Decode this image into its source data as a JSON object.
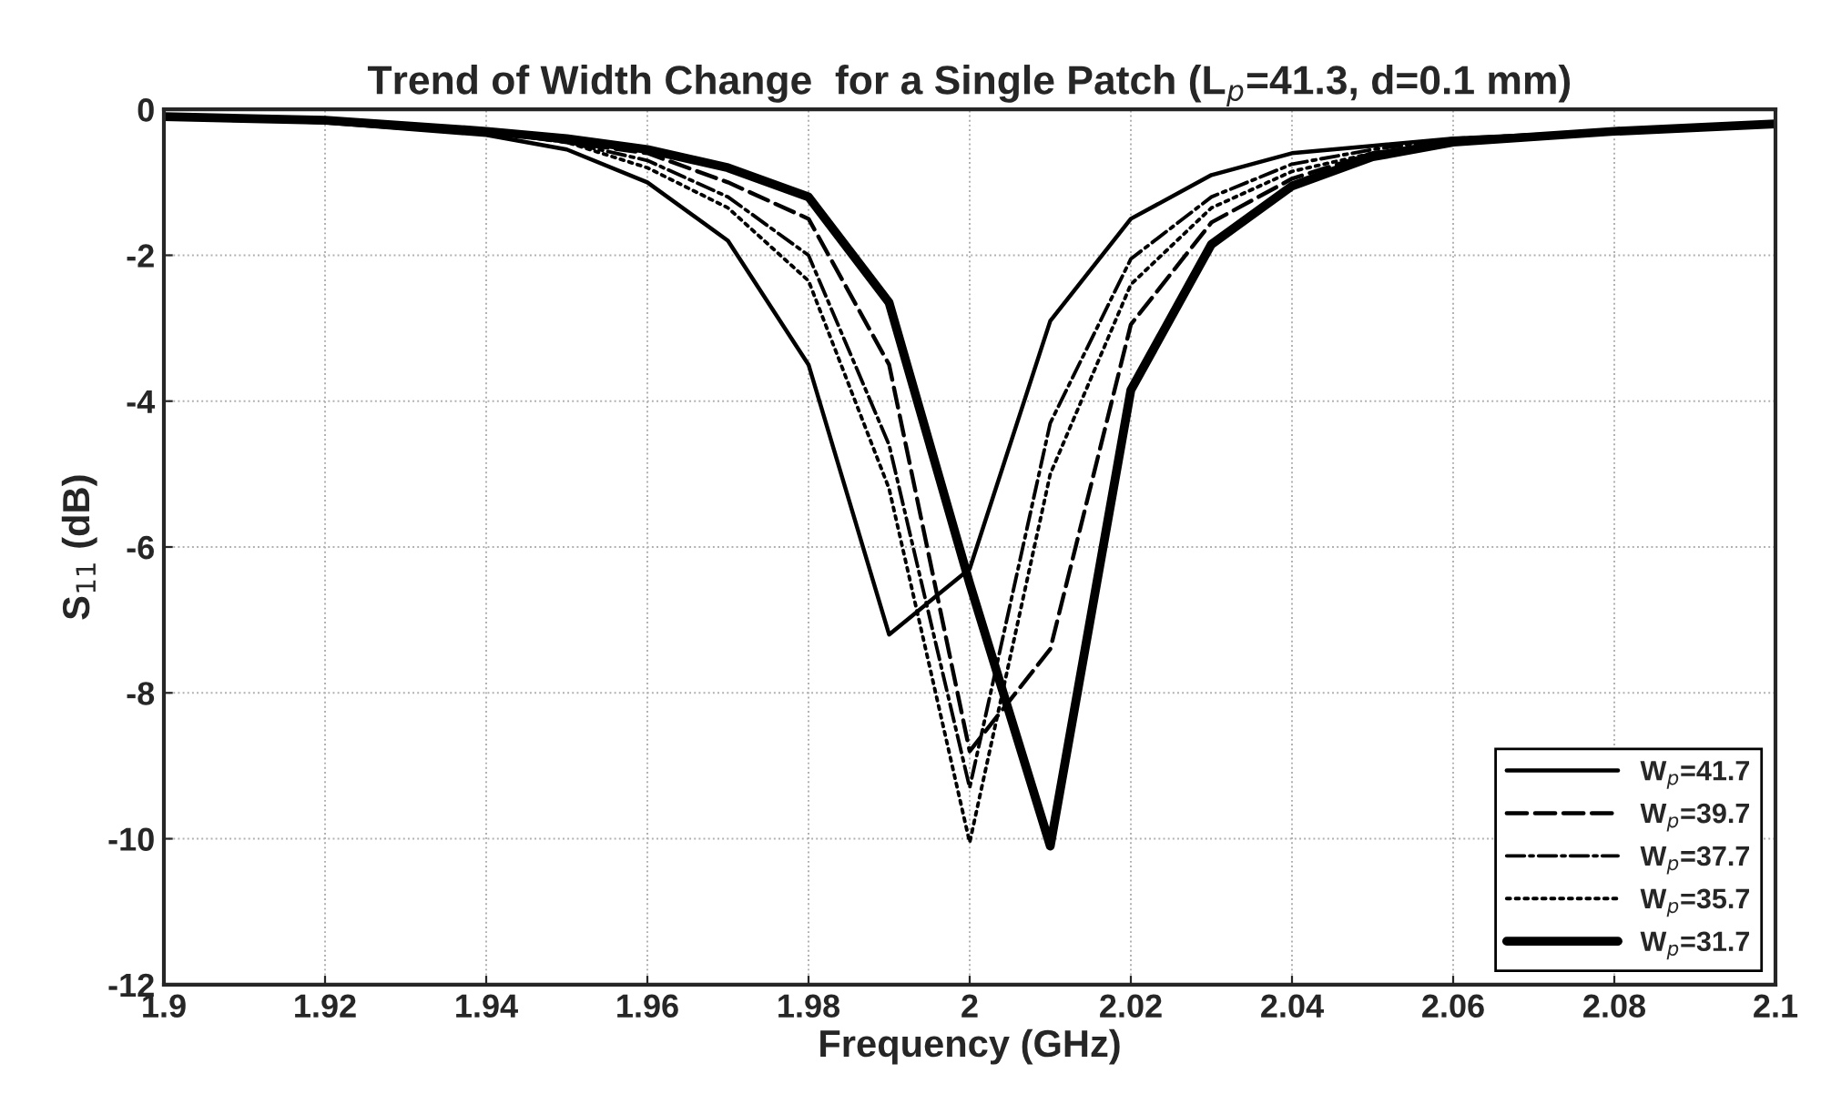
{
  "chart_data": {
    "type": "line",
    "title": "Trend of Width Change  for a Single Patch (L$_{p}$=41.3, d=0.1 mm)",
    "xlabel": "Frequency (GHz)",
    "ylabel": "S$_{11}$ (dB)",
    "x": [
      1.9,
      1.92,
      1.94,
      1.95,
      1.96,
      1.97,
      1.98,
      1.99,
      2.0,
      2.01,
      2.02,
      2.03,
      2.04,
      2.05,
      2.06,
      2.08,
      2.1
    ],
    "series": [
      {
        "name": "W$_{p}$=41.7",
        "color": "#000000",
        "line_style": "solid",
        "values": [
          -0.1,
          -0.18,
          -0.35,
          -0.55,
          -1.0,
          -1.8,
          -3.5,
          -7.2,
          -6.3,
          -2.9,
          -1.5,
          -0.9,
          -0.6,
          -0.5,
          -0.4,
          -0.3,
          -0.2
        ]
      },
      {
        "name": "W$_{p}$=39.7",
        "color": "#000000",
        "line_style": "dashed",
        "values": [
          -0.1,
          -0.15,
          -0.3,
          -0.45,
          -0.6,
          -1.0,
          -1.5,
          -3.5,
          -8.8,
          -7.4,
          -2.95,
          -1.55,
          -0.95,
          -0.6,
          -0.45,
          -0.3,
          -0.2
        ]
      },
      {
        "name": "W$_{p}$=37.7",
        "color": "#000000",
        "line_style": "dashdot",
        "values": [
          -0.1,
          -0.15,
          -0.3,
          -0.45,
          -0.7,
          -1.2,
          -2.0,
          -4.6,
          -9.3,
          -4.3,
          -2.05,
          -1.2,
          -0.75,
          -0.55,
          -0.4,
          -0.3,
          -0.2
        ]
      },
      {
        "name": "W$_{p}$=35.7",
        "color": "#000000",
        "line_style": "dotted",
        "values": [
          -0.1,
          -0.15,
          -0.3,
          -0.45,
          -0.8,
          -1.35,
          -2.35,
          -5.2,
          -10.05,
          -5.0,
          -2.4,
          -1.35,
          -0.85,
          -0.6,
          -0.45,
          -0.3,
          -0.2
        ]
      },
      {
        "name": "W$_{p}$=31.7",
        "color": "#000000",
        "line_style": "solid",
        "values": [
          -0.1,
          -0.15,
          -0.3,
          -0.4,
          -0.55,
          -0.8,
          -1.2,
          -2.65,
          -6.5,
          -10.1,
          -3.85,
          -1.85,
          -1.05,
          -0.65,
          -0.45,
          -0.3,
          -0.2
        ]
      }
    ],
    "xlim": [
      1.9,
      2.1
    ],
    "ylim": [
      -12,
      0
    ],
    "xticks": [
      1.9,
      1.92,
      1.94,
      1.96,
      1.98,
      {
        "value": 2.0,
        "label": "2"
      },
      2.02,
      2.04,
      2.06,
      2.08,
      2.1
    ],
    "yticks": [
      -12,
      -10,
      -8,
      -6,
      -4,
      -2,
      0
    ],
    "grid": true,
    "legend": "bottom right",
    "marker": "none"
  }
}
